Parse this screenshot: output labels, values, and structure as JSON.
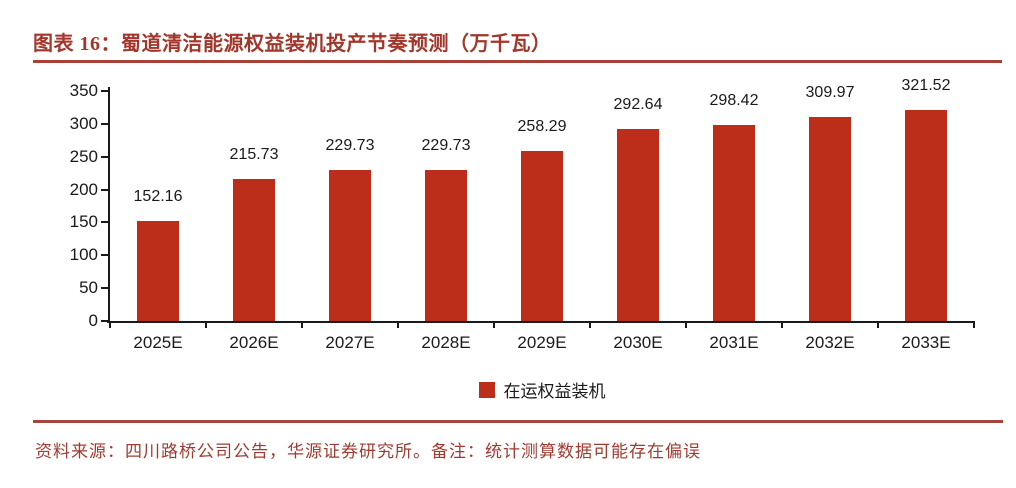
{
  "header": {
    "title": "图表 16：蜀道清洁能源权益装机投产节奏预测（万千瓦）"
  },
  "chart_data": {
    "type": "bar",
    "title": "蜀道清洁能源权益装机投产节奏预测",
    "unit": "万千瓦",
    "categories": [
      "2025E",
      "2026E",
      "2027E",
      "2028E",
      "2029E",
      "2030E",
      "2031E",
      "2032E",
      "2033E"
    ],
    "series": [
      {
        "name": "在运权益装机",
        "values": [
          152.16,
          215.73,
          229.73,
          229.73,
          258.29,
          292.64,
          298.42,
          309.97,
          321.52
        ]
      }
    ],
    "value_labels": [
      "152.16",
      "215.73",
      "229.73",
      "229.73",
      "258.29",
      "292.64",
      "298.42",
      "309.97",
      "321.52"
    ],
    "xlabel": "",
    "ylabel": "",
    "ylim": [
      0,
      350
    ],
    "yticks": [
      0,
      50,
      100,
      150,
      200,
      250,
      300,
      350
    ],
    "grid": false,
    "legend_position": "bottom",
    "bar_color": "#BC2D1A"
  },
  "legend": {
    "label": "在运权益装机",
    "swatch_color": "#BC2D1A"
  },
  "footer": {
    "source_note": "资料来源：四川路桥公司公告，华源证券研究所。备注：统计测算数据可能存在偏误"
  },
  "colors": {
    "title": "#A2362B",
    "rule": "#A84138",
    "axis": "#1a1a1a",
    "bar": "#BC2D1A",
    "source_text": "#A03B32"
  }
}
